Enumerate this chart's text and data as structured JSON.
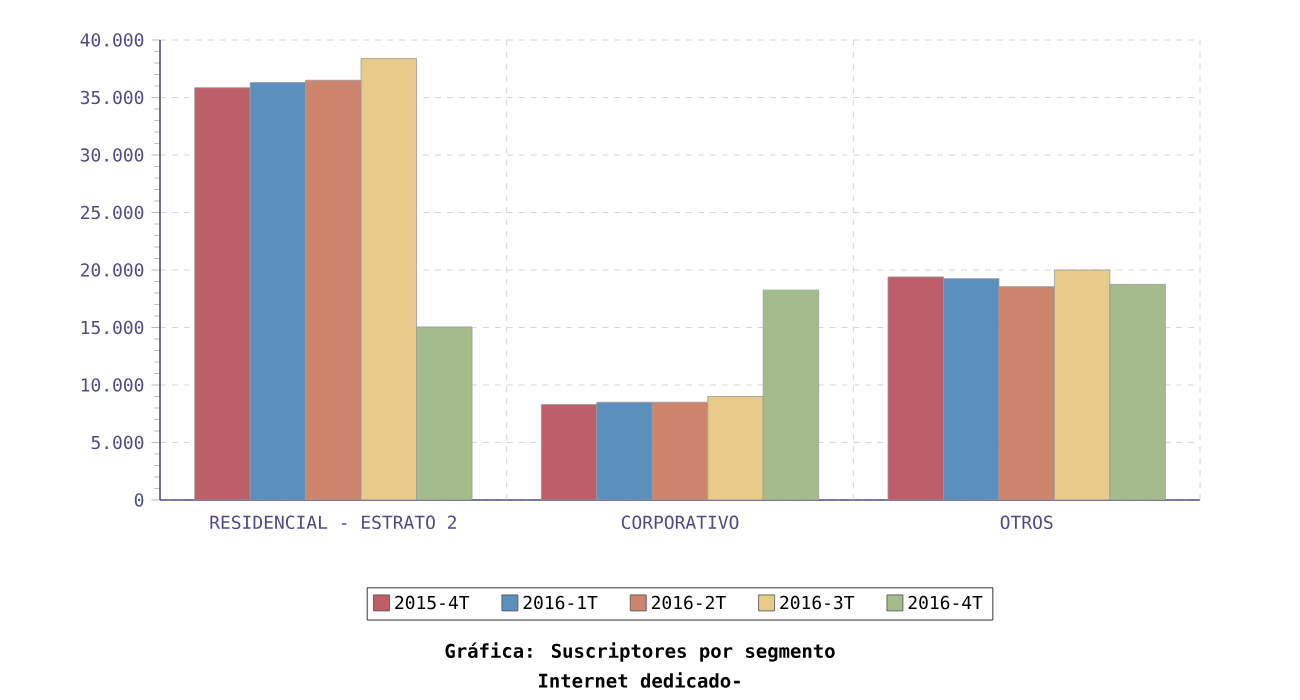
{
  "chart_data": {
    "type": "bar",
    "title": "Gráfica: Suscriptores por segmento",
    "subtitle": "Internet dedicado-",
    "categories": [
      "RESIDENCIAL - ESTRATO 2",
      "CORPORATIVO",
      "OTROS"
    ],
    "series": [
      {
        "name": "2015-4T",
        "color": "#bd5f69",
        "values": [
          35850,
          8300,
          19400
        ]
      },
      {
        "name": "2016-1T",
        "color": "#5b8fbe",
        "values": [
          36300,
          8500,
          19250
        ]
      },
      {
        "name": "2016-2T",
        "color": "#cd866d",
        "values": [
          36500,
          8500,
          18550
        ]
      },
      {
        "name": "2016-3T",
        "color": "#e9ca8a",
        "values": [
          38400,
          9000,
          20000
        ]
      },
      {
        "name": "2016-4T",
        "color": "#a4bc8c",
        "values": [
          15050,
          18250,
          18750
        ]
      }
    ],
    "ylim": [
      0,
      40000
    ],
    "yticks": [
      {
        "value": 0,
        "label": "0"
      },
      {
        "value": 5000,
        "label": "5.000"
      },
      {
        "value": 10000,
        "label": "10.000"
      },
      {
        "value": 15000,
        "label": "15.000"
      },
      {
        "value": 20000,
        "label": "20.000"
      },
      {
        "value": 25000,
        "label": "25.000"
      },
      {
        "value": 30000,
        "label": "30.000"
      },
      {
        "value": 35000,
        "label": "35.000"
      },
      {
        "value": 40000,
        "label": "40.000"
      }
    ],
    "grid": true,
    "legend": "bottom"
  }
}
